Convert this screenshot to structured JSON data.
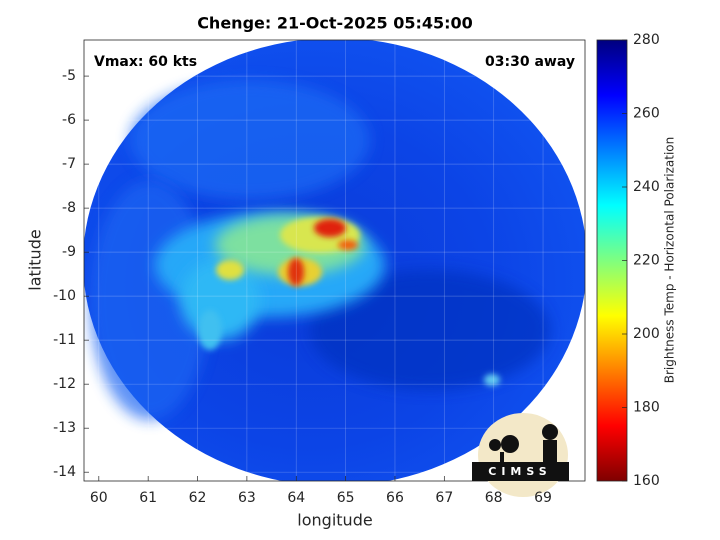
{
  "chart_data": {
    "type": "image",
    "title": "Chenge: 21-Oct-2025 05:45:00",
    "annotations": [
      "Vmax: 60 kts",
      "03:30 away"
    ],
    "xlabel": "longitude",
    "ylabel": "latitude",
    "xlim": [
      59.7,
      69.85
    ],
    "ylim": [
      -14.2,
      -4.18
    ],
    "xticks": [
      60,
      61,
      62,
      63,
      64,
      65,
      66,
      67,
      68,
      69
    ],
    "yticks": [
      -5,
      -6,
      -7,
      -8,
      -9,
      -10,
      -11,
      -12,
      -13,
      -14
    ],
    "grid": true,
    "colorbar": {
      "label": "Brightness Temp - Horizontal Polarization",
      "colormap": "jet",
      "clim": [
        160,
        280
      ],
      "ticks": [
        160,
        180,
        200,
        220,
        240,
        260,
        280
      ]
    },
    "logo": "CIMSS"
  }
}
